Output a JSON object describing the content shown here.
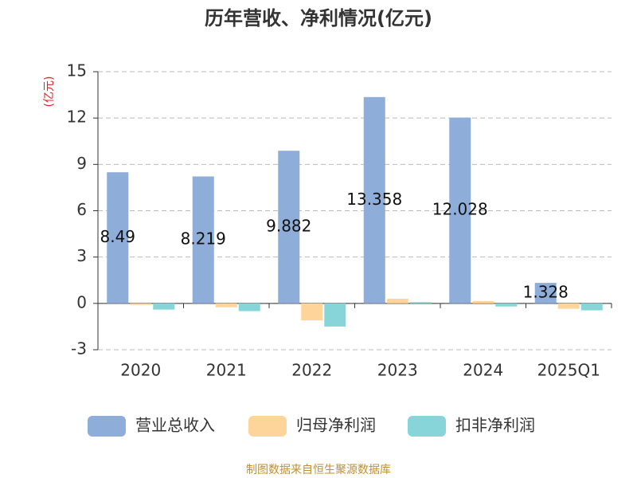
{
  "chart_data": {
    "type": "bar",
    "title": "历年营收、净利情况(亿元)",
    "y_unit": "(亿元)",
    "source": "制图数据来自恒生聚源数据库",
    "categories": [
      "2020",
      "2021",
      "2022",
      "2023",
      "2024",
      "2025Q1"
    ],
    "series": [
      {
        "name": "营业总收入",
        "color": "#8eadd9",
        "values": [
          8.49,
          8.219,
          9.882,
          13.358,
          12.028,
          1.328
        ],
        "data_labels": true
      },
      {
        "name": "归母净利润",
        "color": "#fdd59a",
        "values": [
          -0.1,
          -0.25,
          -1.1,
          0.3,
          0.15,
          -0.35
        ]
      },
      {
        "name": "扣非净利润",
        "color": "#87d5d8",
        "values": [
          -0.4,
          -0.5,
          -1.5,
          0.08,
          -0.2,
          -0.45
        ]
      }
    ],
    "ylim": [
      -3,
      15
    ],
    "yticks": [
      -3,
      0,
      3,
      6,
      9,
      12,
      15
    ],
    "grid": true,
    "legend": "bottom"
  }
}
